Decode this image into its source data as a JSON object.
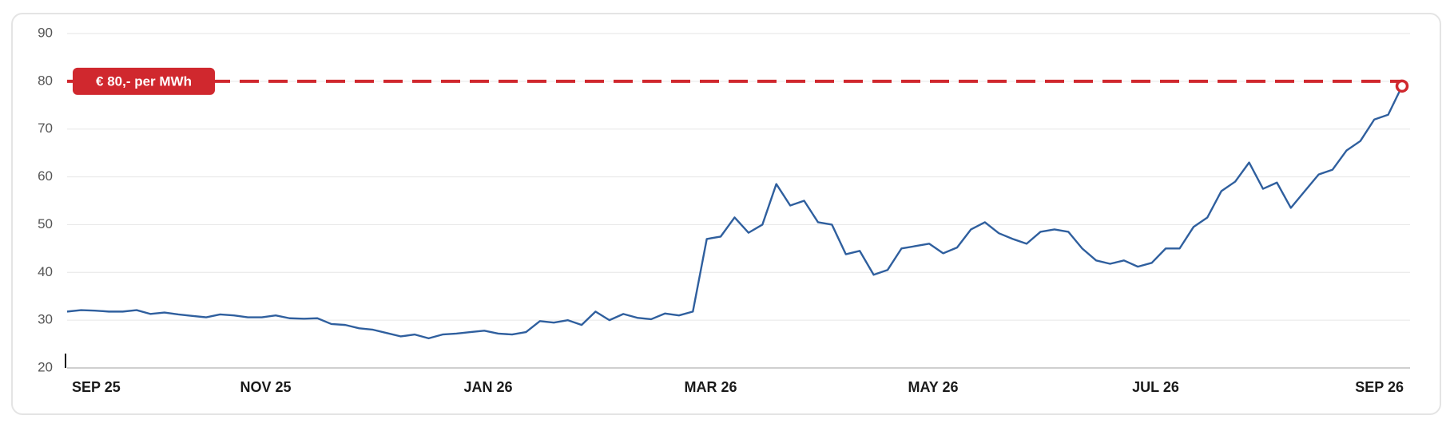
{
  "chart_data": {
    "type": "line",
    "categories": [
      "SEP 25",
      null,
      null,
      null,
      null,
      null,
      null,
      null,
      null,
      null,
      null,
      null,
      null,
      null,
      null,
      null,
      "NOV 25",
      null,
      null,
      null,
      null,
      null,
      null,
      null,
      null,
      null,
      null,
      null,
      null,
      null,
      null,
      null,
      "JAN 26",
      null,
      null,
      null,
      null,
      null,
      null,
      null,
      null,
      null,
      null,
      null,
      null,
      null,
      null,
      null,
      "MAR 26",
      null,
      null,
      null,
      null,
      null,
      null,
      null,
      null,
      null,
      null,
      null,
      null,
      null,
      null,
      null,
      "MAY 26",
      null,
      null,
      null,
      null,
      null,
      null,
      null,
      null,
      null,
      null,
      null,
      null,
      null,
      null,
      null,
      "JUL 26",
      null,
      null,
      null,
      null,
      null,
      null,
      null,
      null,
      null,
      null,
      null,
      null,
      null,
      null,
      null,
      "SEP 26"
    ],
    "values": [
      31.8,
      32.1,
      32.0,
      31.8,
      31.8,
      32.1,
      31.3,
      31.6,
      31.2,
      30.9,
      30.6,
      31.2,
      31.0,
      30.6,
      30.6,
      31.0,
      30.4,
      30.3,
      30.4,
      29.2,
      29.0,
      28.3,
      28.0,
      27.3,
      26.6,
      27.0,
      26.2,
      27.0,
      27.2,
      27.5,
      27.8,
      27.2,
      27.0,
      27.5,
      29.8,
      29.5,
      30.0,
      29.0,
      31.8,
      30.0,
      31.3,
      30.5,
      30.2,
      31.4,
      31.0,
      31.8,
      47.0,
      47.5,
      51.5,
      48.3,
      50.0,
      58.5,
      54.0,
      55.0,
      50.5,
      50.0,
      43.8,
      44.5,
      39.5,
      40.5,
      45.0,
      45.5,
      46.0,
      44.0,
      45.2,
      49.0,
      50.5,
      48.2,
      47.0,
      46.0,
      48.5,
      49.0,
      48.5,
      45.0,
      42.5,
      41.8,
      42.5,
      41.2,
      42.0,
      45.0,
      45.0,
      49.5,
      51.5,
      57.0,
      59.0,
      63.0,
      57.5,
      58.8,
      53.5,
      57.0,
      60.5,
      61.5,
      65.5,
      67.5,
      72.0,
      73.0,
      79.0
    ],
    "color": "#2f5f9e",
    "ylim": [
      20,
      90
    ],
    "yticks": [
      20,
      30,
      40,
      50,
      60,
      70,
      80,
      90
    ],
    "grid": true,
    "threshold": {
      "value": 80,
      "label": "€ 80,- per MWh",
      "color": "#d0282e"
    }
  }
}
